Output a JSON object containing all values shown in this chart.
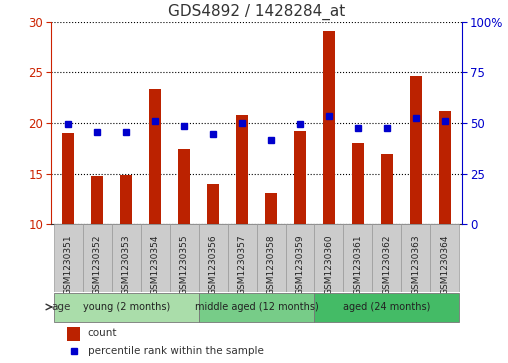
{
  "title": "GDS4892 / 1428284_at",
  "samples": [
    "GSM1230351",
    "GSM1230352",
    "GSM1230353",
    "GSM1230354",
    "GSM1230355",
    "GSM1230356",
    "GSM1230357",
    "GSM1230358",
    "GSM1230359",
    "GSM1230360",
    "GSM1230361",
    "GSM1230362",
    "GSM1230363",
    "GSM1230364"
  ],
  "counts": [
    19.0,
    14.8,
    14.9,
    23.4,
    17.4,
    14.0,
    20.8,
    13.1,
    19.2,
    29.1,
    18.0,
    16.9,
    24.6,
    21.2
  ],
  "percentiles": [
    49.5,
    45.5,
    45.5,
    51.0,
    48.5,
    44.5,
    50.0,
    41.5,
    49.5,
    53.5,
    47.5,
    47.5,
    52.5,
    51.0
  ],
  "ylim_left": [
    10,
    30
  ],
  "ylim_right": [
    0,
    100
  ],
  "bar_color": "#bb2200",
  "dot_color": "#0000cc",
  "grid_color": "#000000",
  "groups": [
    {
      "label": "young (2 months)",
      "start": 0,
      "end": 5,
      "color": "#aaddaa"
    },
    {
      "label": "middle aged (12 months)",
      "start": 5,
      "end": 9,
      "color": "#77cc88"
    },
    {
      "label": "aged (24 months)",
      "start": 9,
      "end": 14,
      "color": "#44bb66"
    }
  ],
  "age_label": "age",
  "legend_count": "count",
  "legend_percentile": "percentile rank within the sample",
  "tick_positions_left": [
    10,
    15,
    20,
    25,
    30
  ],
  "tick_positions_right": [
    0,
    25,
    50,
    75,
    100
  ],
  "title_fontsize": 11,
  "tick_fontsize": 8.5,
  "sample_fontsize": 6.5
}
